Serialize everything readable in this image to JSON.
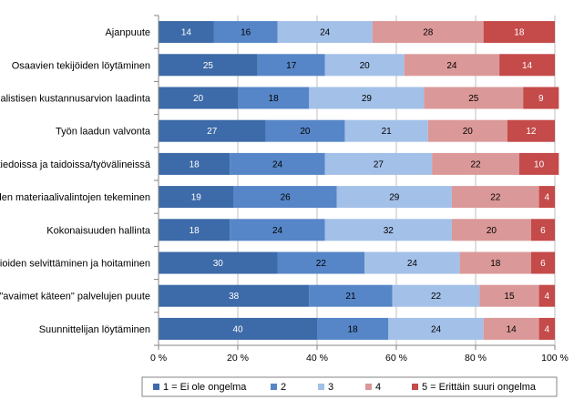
{
  "chart_data": {
    "type": "bar",
    "orientation": "horizontal",
    "stacked": true,
    "percent": true,
    "categories": [
      "Ajanpuute",
      "Osaavien tekijöiden löytäminen",
      "Realistisen kustannusarvion laadinta",
      "Työn laadun valvonta",
      "Puutteet tiedoissa ja taidoissa/työvälineissä",
      "Oikeiden materiaalivalintojen tekeminen",
      "Kokonaisuuden hallinta",
      "Lupa-asioiden selvittäminen ja hoitaminen",
      "\"avaimet käteen\" palvelujen puute",
      "Suunnittelijan löytäminen"
    ],
    "series": [
      {
        "name": "1 = Ei ole ongelma",
        "color": "#3d6aa8",
        "label_color": "#ffffff",
        "values": [
          14,
          25,
          20,
          27,
          18,
          19,
          18,
          30,
          38,
          40
        ]
      },
      {
        "name": "2",
        "color": "#5686c7",
        "label_color": "#000000",
        "values": [
          16,
          17,
          18,
          20,
          24,
          26,
          24,
          22,
          21,
          18
        ]
      },
      {
        "name": "3",
        "color": "#a3c0e8",
        "label_color": "#000000",
        "values": [
          24,
          20,
          29,
          21,
          27,
          29,
          32,
          24,
          22,
          24
        ]
      },
      {
        "name": "4",
        "color": "#db9898",
        "label_color": "#000000",
        "values": [
          28,
          24,
          25,
          20,
          22,
          22,
          20,
          18,
          15,
          14
        ]
      },
      {
        "name": "5 = Erittäin suuri ongelma",
        "color": "#c54a4a",
        "label_color": "#ffffff",
        "values": [
          18,
          14,
          9,
          12,
          10,
          4,
          6,
          6,
          4,
          4
        ]
      }
    ],
    "x_ticks": [
      "0 %",
      "20 %",
      "40 %",
      "60 %",
      "80 %",
      "100 %"
    ],
    "xlim": [
      0,
      100
    ],
    "grid": true,
    "legend_position": "bottom"
  }
}
